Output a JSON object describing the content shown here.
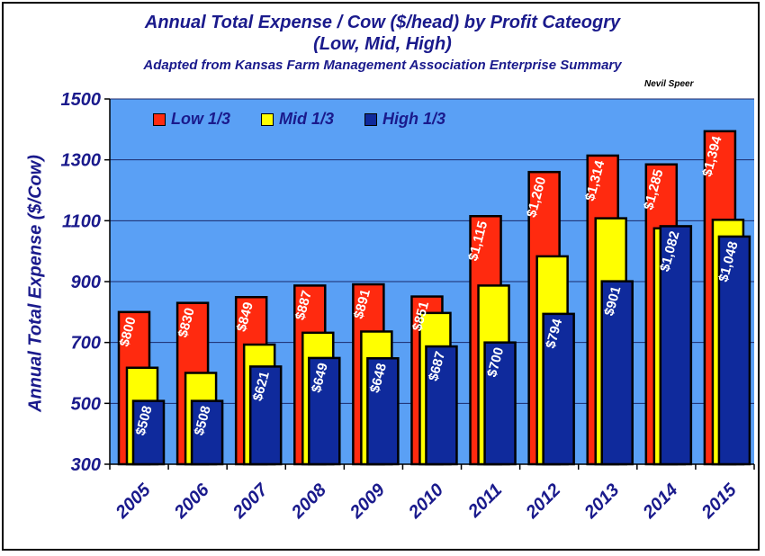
{
  "chart_data": {
    "type": "bar",
    "title": "Annual Total Expense / Cow ($/head) by Profit Cateogry",
    "subtitle": "(Low, Mid, High)",
    "source_note": "Adapted from Kansas Farm Management Association Enterprise Summary",
    "author": "Nevil Speer",
    "xlabel": "",
    "ylabel": "Annual Total Expense ($/Cow)",
    "ylim": [
      300,
      1500
    ],
    "yticks": [
      300,
      500,
      700,
      900,
      1100,
      1300,
      1500
    ],
    "grid": true,
    "legend_position": "top-left",
    "categories": [
      "2005",
      "2006",
      "2007",
      "2008",
      "2009",
      "2010",
      "2011",
      "2012",
      "2013",
      "2014",
      "2015"
    ],
    "series": [
      {
        "name": "Low 1/3",
        "color": "#ff2a0f",
        "values": [
          800,
          830,
          849,
          887,
          891,
          851,
          1115,
          1260,
          1314,
          1285,
          1394
        ],
        "labels": [
          "$800",
          "$830",
          "$849",
          "$887",
          "$891",
          "$851",
          "$1,115",
          "$1,260",
          "$1,314",
          "$1,285",
          "$1,394"
        ]
      },
      {
        "name": "Mid 1/3",
        "color": "#ffff00",
        "values": [
          617,
          600,
          693,
          732,
          736,
          797,
          887,
          983,
          1108,
          1075,
          1103
        ]
      },
      {
        "name": "High 1/3",
        "color": "#0f2a9c",
        "values": [
          508,
          508,
          621,
          649,
          648,
          687,
          700,
          794,
          901,
          1082,
          1048
        ],
        "labels": [
          "$508",
          "$508",
          "$621",
          "$649",
          "$648",
          "$687",
          "$700",
          "$794",
          "$901",
          "$1,082",
          "$1,048"
        ]
      }
    ],
    "colors": {
      "plot_bg": "#5aa0f5",
      "title_text": "#1a1a8c",
      "gridline": "#1b2a6b"
    }
  }
}
